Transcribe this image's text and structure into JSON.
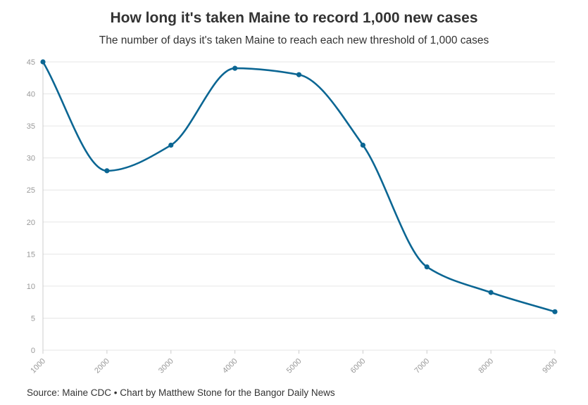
{
  "header": {
    "title": "How long it's taken Maine to record 1,000 new cases",
    "subtitle": "The number of days it's taken Maine to reach each new threshold of 1,000 cases"
  },
  "footer": {
    "source": "Source: Maine CDC • Chart by Matthew Stone for the Bangor Daily News"
  },
  "chart_data": {
    "type": "line",
    "title": "How long it's taken Maine to record 1,000 new cases",
    "subtitle": "The number of days it's taken Maine to reach each new threshold of 1,000 cases",
    "xlabel": "",
    "ylabel": "",
    "x": [
      1000,
      2000,
      3000,
      4000,
      5000,
      6000,
      7000,
      8000,
      9000
    ],
    "series": [
      {
        "values": [
          45,
          28,
          32,
          44,
          43,
          32,
          13,
          9,
          6
        ]
      }
    ],
    "xlim": [
      1000,
      9000
    ],
    "ylim": [
      0,
      45
    ],
    "x_ticks": [
      "1000",
      "2000",
      "3000",
      "4000",
      "5000",
      "6000",
      "7000",
      "8000",
      "9000"
    ],
    "y_ticks": [
      "0",
      "5",
      "10",
      "15",
      "20",
      "25",
      "30",
      "35",
      "40",
      "45"
    ],
    "grid": true,
    "smooth": true,
    "line_color": "#0b6693",
    "grid_color": "#e6e6e6",
    "tick_color": "#999999"
  }
}
